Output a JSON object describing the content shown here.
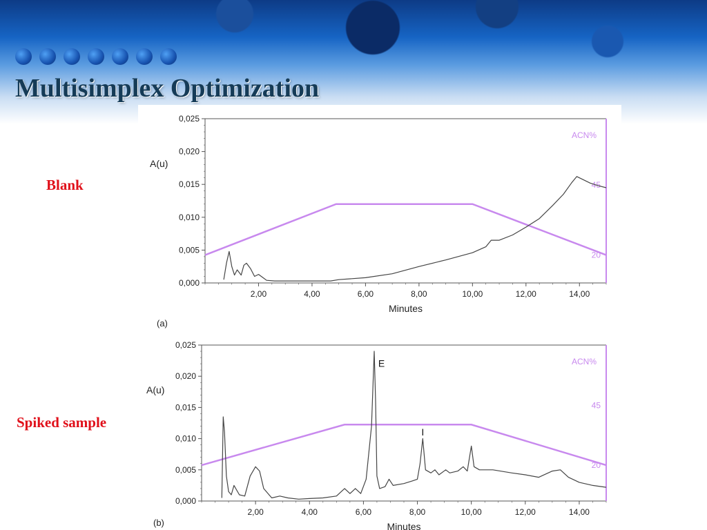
{
  "slide": {
    "title": "Multisimplex Optimization",
    "labels": [
      "Blank",
      "Spiked sample"
    ]
  },
  "colors": {
    "trace": "#444444",
    "gradient": "#c889ee",
    "label": "#e0101a",
    "title": "#153b57"
  },
  "chart_data": [
    {
      "type": "line",
      "panel_label": "(a)",
      "xlabel": "Minutes",
      "ylabel": "A(u)",
      "xlim": [
        0,
        15
      ],
      "ylim": [
        0,
        0.025
      ],
      "x_ticks": [
        2,
        4,
        6,
        8,
        10,
        12,
        14
      ],
      "x_tick_labels": [
        "2,00",
        "4,00",
        "6,00",
        "8,00",
        "10,00",
        "12,00",
        "14,00"
      ],
      "y_ticks": [
        0,
        0.005,
        0.01,
        0.015,
        0.02,
        0.025
      ],
      "y_tick_labels": [
        "0,000",
        "0,005",
        "0,010",
        "0,015",
        "0,020",
        "0,025"
      ],
      "grid": false,
      "series": [
        {
          "name": "",
          "x": [
            0.0,
            0.7,
            0.8,
            0.9,
            1.0,
            1.1,
            1.2,
            1.35,
            1.45,
            1.55,
            1.7,
            1.85,
            2.0,
            2.3,
            2.6,
            3.2,
            4.0,
            4.7,
            5.0,
            6.0,
            7.0,
            8.0,
            9.0,
            10.0,
            10.5,
            10.7,
            11.0,
            11.5,
            12.0,
            12.5,
            13.0,
            13.4,
            13.7,
            13.9,
            14.1,
            14.4,
            14.7,
            15.0
          ],
          "y": [
            null,
            0.0005,
            0.003,
            0.0048,
            0.0025,
            0.0012,
            0.002,
            0.0012,
            0.0027,
            0.003,
            0.0022,
            0.001,
            0.0013,
            0.0004,
            0.0003,
            0.0003,
            0.0003,
            0.0003,
            0.0005,
            0.0008,
            0.0014,
            0.0025,
            0.0035,
            0.0046,
            0.0055,
            0.0065,
            0.0065,
            0.0073,
            0.0085,
            0.0098,
            0.0118,
            0.0135,
            0.0152,
            0.0162,
            0.0158,
            0.0152,
            0.0148,
            0.0145
          ]
        }
      ],
      "gradient_profile": {
        "label": "ACN%",
        "levels": [
          {
            "label": "45",
            "value": 45
          },
          {
            "label": "20",
            "value": 20
          }
        ],
        "x": [
          0,
          4.9,
          10.0,
          15.0
        ],
        "value": [
          20,
          45,
          45,
          20
        ]
      }
    },
    {
      "type": "line",
      "panel_label": "(b)",
      "xlabel": "Minutes",
      "ylabel": "A(u)",
      "xlim": [
        0,
        15
      ],
      "ylim": [
        0,
        0.025
      ],
      "x_ticks": [
        2,
        4,
        6,
        8,
        10,
        12,
        14
      ],
      "x_tick_labels": [
        "2,00",
        "4,00",
        "6,00",
        "8,00",
        "10,00",
        "12,00",
        "14,00"
      ],
      "y_ticks": [
        0,
        0.005,
        0.01,
        0.015,
        0.02,
        0.025
      ],
      "y_tick_labels": [
        "0,000",
        "0,005",
        "0,010",
        "0,015",
        "0,020",
        "0,025"
      ],
      "grid": false,
      "series": [
        {
          "name": "",
          "x": [
            0.0,
            0.75,
            0.8,
            0.85,
            0.92,
            1.0,
            1.1,
            1.2,
            1.4,
            1.6,
            1.8,
            2.0,
            2.15,
            2.3,
            2.6,
            2.9,
            3.2,
            3.6,
            4.0,
            4.5,
            5.0,
            5.3,
            5.5,
            5.7,
            5.9,
            6.1,
            6.3,
            6.4,
            6.45,
            6.5,
            6.6,
            6.8,
            6.95,
            7.1,
            7.5,
            7.8,
            8.0,
            8.1,
            8.2,
            8.3,
            8.5,
            8.65,
            8.8,
            9.05,
            9.2,
            9.5,
            9.7,
            9.85,
            10.0,
            10.1,
            10.3,
            10.8,
            11.5,
            12.0,
            12.5,
            13.0,
            13.3,
            13.6,
            14.0,
            14.5,
            15.0
          ],
          "y": [
            null,
            0.0005,
            0.0135,
            0.011,
            0.004,
            0.0015,
            0.001,
            0.0025,
            0.001,
            0.0008,
            0.004,
            0.0055,
            0.0048,
            0.002,
            0.0005,
            0.0008,
            0.0005,
            0.0003,
            0.0004,
            0.0005,
            0.0008,
            0.002,
            0.0012,
            0.002,
            0.0012,
            0.0035,
            0.012,
            0.024,
            0.016,
            0.004,
            0.002,
            0.0023,
            0.0035,
            0.0025,
            0.0028,
            0.0032,
            0.0035,
            0.006,
            0.01,
            0.005,
            0.0045,
            0.005,
            0.0042,
            0.005,
            0.0045,
            0.0048,
            0.0055,
            0.0048,
            0.0088,
            0.0055,
            0.005,
            0.005,
            0.0045,
            0.0042,
            0.0038,
            0.0048,
            0.005,
            0.0038,
            0.003,
            0.0025,
            0.0022
          ]
        }
      ],
      "gradient_profile": {
        "label": "ACN%",
        "levels": [
          {
            "label": "45",
            "value": 45
          },
          {
            "label": "20",
            "value": 20
          }
        ],
        "x": [
          0,
          5.3,
          10.0,
          15.0
        ],
        "value": [
          20,
          45,
          45,
          20
        ]
      },
      "annotations": [
        {
          "text": "E",
          "x": 6.55,
          "y": 0.0215
        },
        {
          "text": "I",
          "x": 8.15,
          "y": 0.0105
        }
      ]
    }
  ]
}
